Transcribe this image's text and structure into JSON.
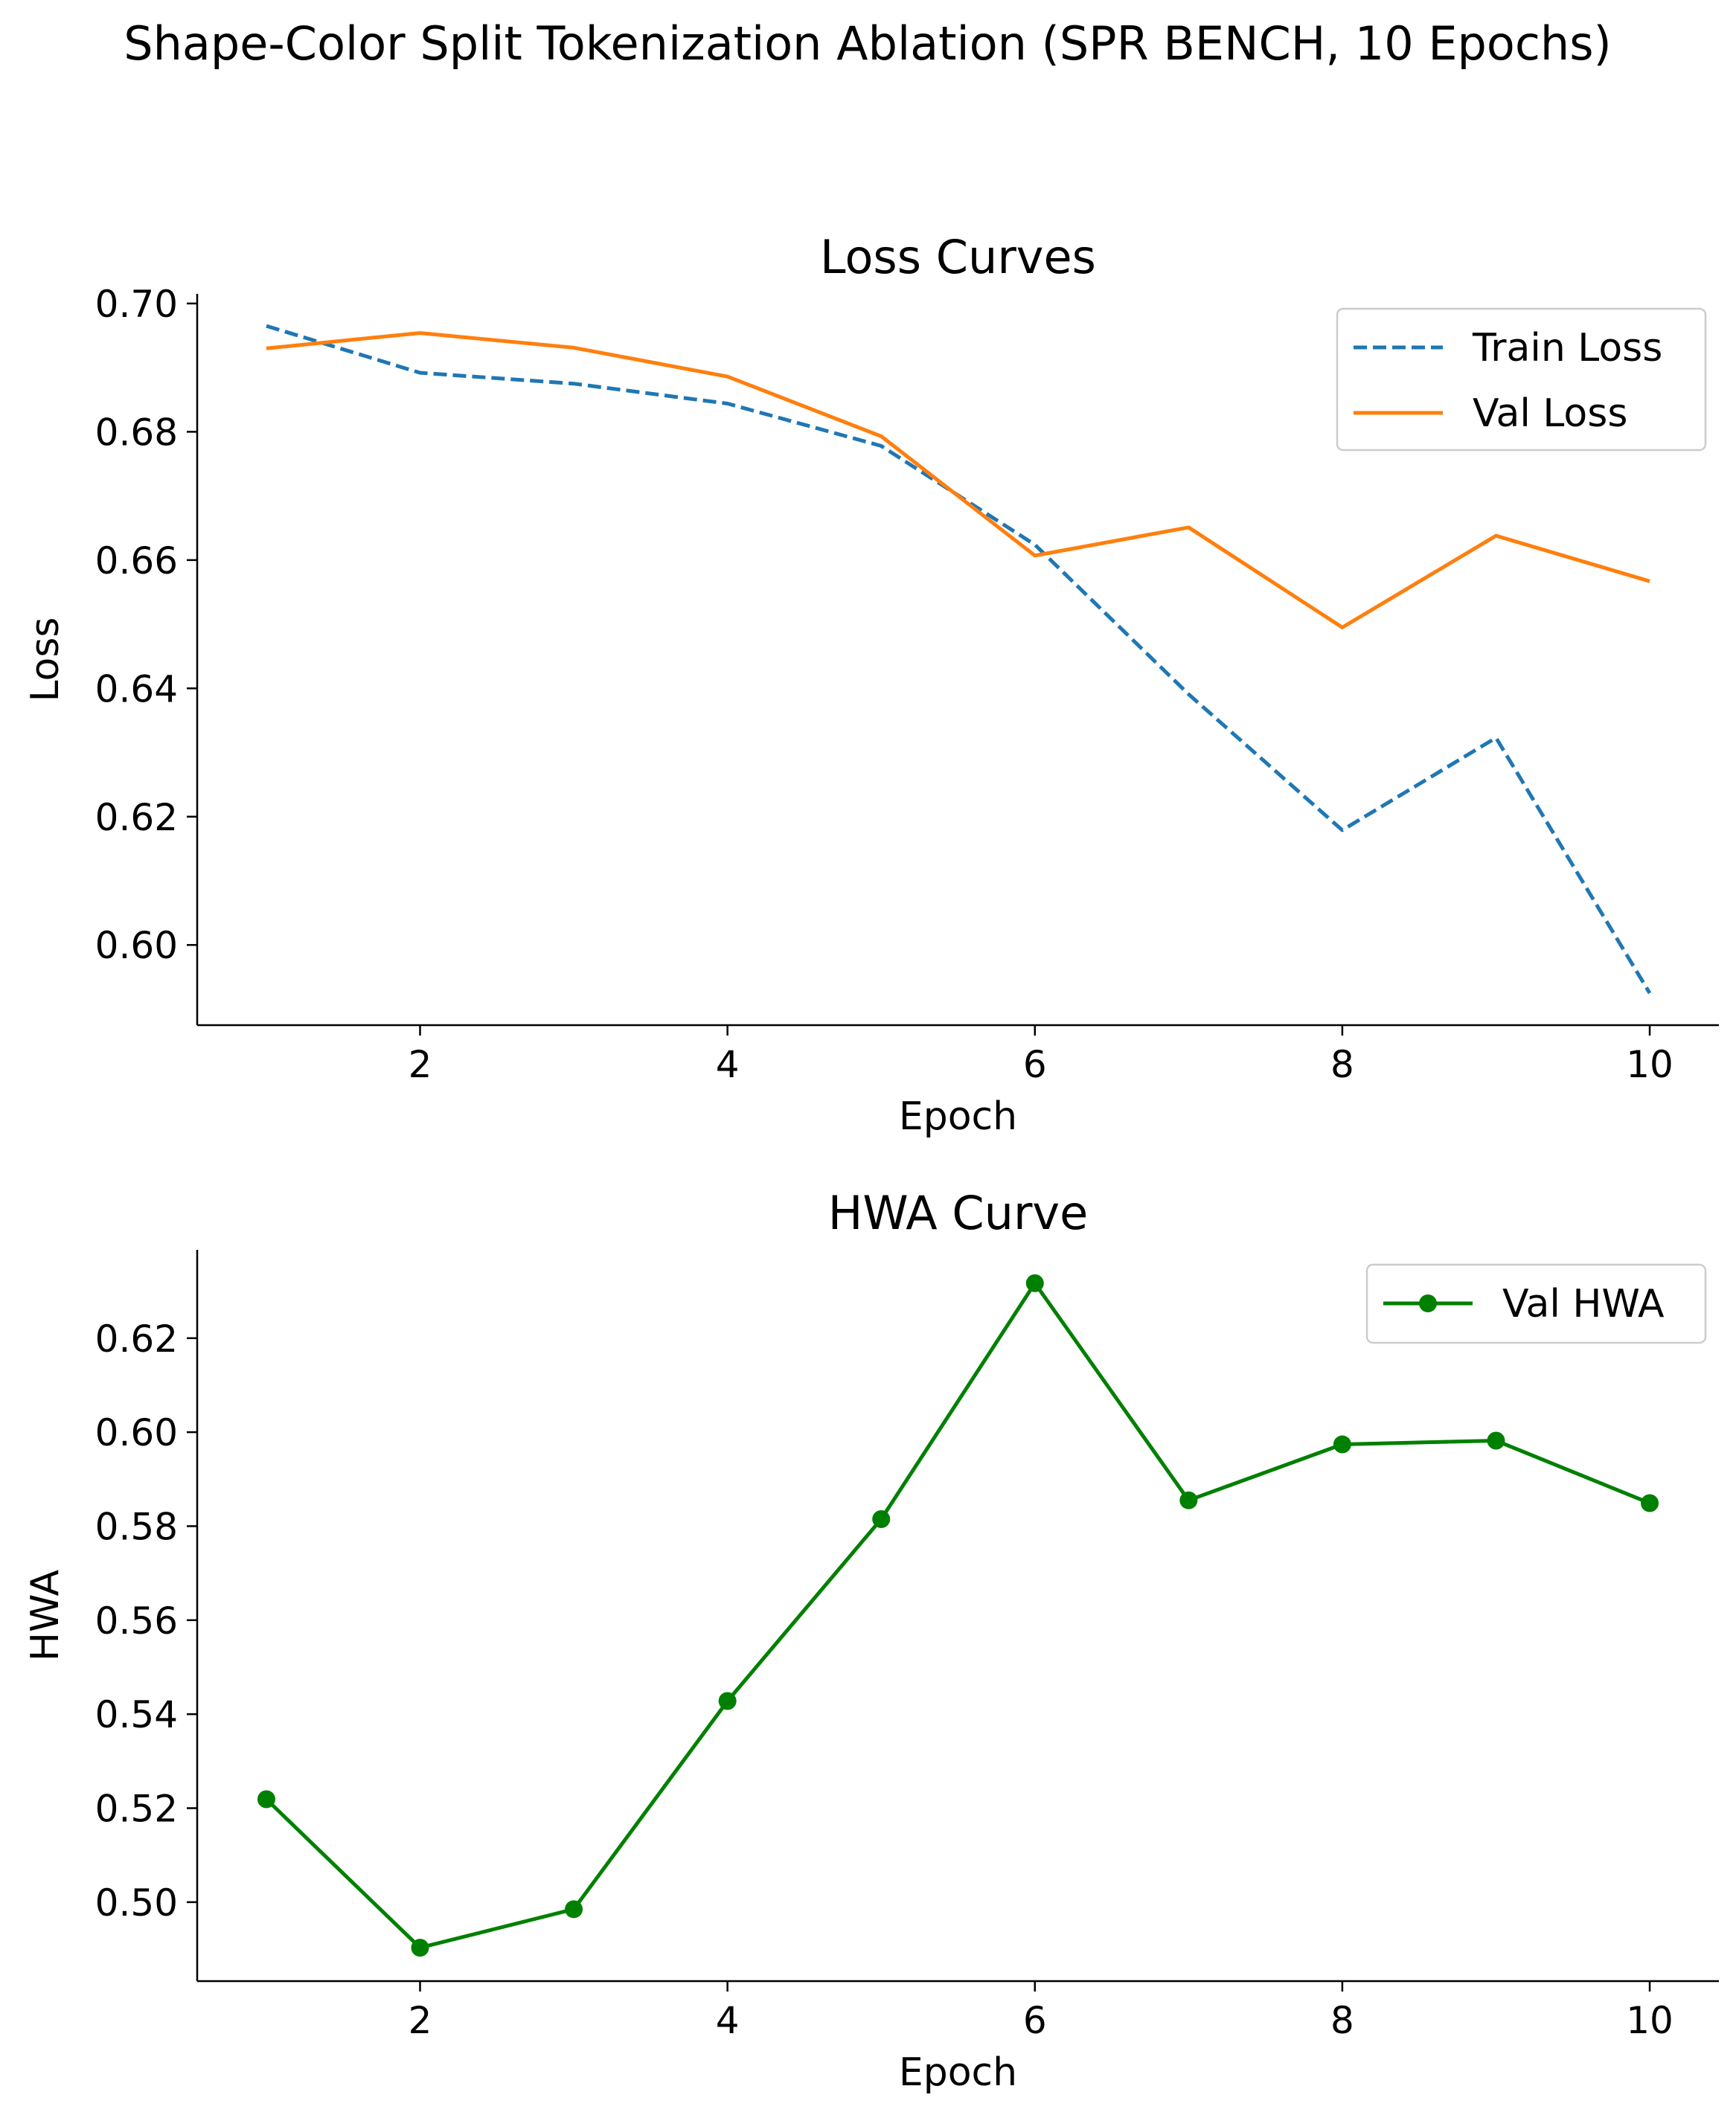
{
  "figure": {
    "title": "Shape-Color Split Tokenization Ablation (SPR BENCH, 10 Epochs)"
  },
  "chart_data": [
    {
      "type": "line",
      "title": "Loss Curves",
      "xlabel": "Epoch",
      "ylabel": "Loss",
      "xlim": [
        0.55,
        10.45
      ],
      "ylim": [
        0.5875,
        0.7015
      ],
      "xticks": [
        2,
        4,
        6,
        8,
        10
      ],
      "xtick_labels": [
        "2",
        "4",
        "6",
        "8",
        "10"
      ],
      "yticks": [
        0.6,
        0.62,
        0.64,
        0.66,
        0.68,
        0.7
      ],
      "ytick_labels": [
        "0.60",
        "0.62",
        "0.64",
        "0.66",
        "0.68",
        "0.70"
      ],
      "grid": false,
      "legend_position": "upper right",
      "x": [
        1,
        2,
        3,
        4,
        5,
        6,
        7,
        8,
        9,
        10
      ],
      "series": [
        {
          "name": "Train Loss",
          "color": "#1f77b4",
          "linestyle": "dashed",
          "values": [
            0.6965,
            0.6892,
            0.6875,
            0.6844,
            0.6778,
            0.6624,
            0.6391,
            0.6179,
            0.6323,
            0.5925
          ]
        },
        {
          "name": "Val Loss",
          "color": "#ff7f0e",
          "linestyle": "solid",
          "values": [
            0.693,
            0.6954,
            0.6931,
            0.6886,
            0.6793,
            0.6607,
            0.6651,
            0.6495,
            0.6638,
            0.6567
          ]
        }
      ]
    },
    {
      "type": "line",
      "title": "HWA Curve",
      "xlabel": "Epoch",
      "ylabel": "HWA",
      "xlim": [
        0.55,
        10.45
      ],
      "ylim": [
        0.4832,
        0.6388
      ],
      "xticks": [
        2,
        4,
        6,
        8,
        10
      ],
      "xtick_labels": [
        "2",
        "4",
        "6",
        "8",
        "10"
      ],
      "yticks": [
        0.5,
        0.52,
        0.54,
        0.56,
        0.58,
        0.6,
        0.62
      ],
      "ytick_labels": [
        "0.50",
        "0.52",
        "0.54",
        "0.56",
        "0.58",
        "0.60",
        "0.62"
      ],
      "grid": false,
      "legend_position": "upper right",
      "x": [
        1,
        2,
        3,
        4,
        5,
        6,
        7,
        8,
        9,
        10
      ],
      "series": [
        {
          "name": "Val HWA",
          "color": "#008000",
          "linestyle": "solid",
          "marker": "circle",
          "values": [
            0.5219,
            0.4903,
            0.4985,
            0.5428,
            0.5815,
            0.6317,
            0.5855,
            0.5974,
            0.5982,
            0.5849
          ]
        }
      ]
    }
  ]
}
